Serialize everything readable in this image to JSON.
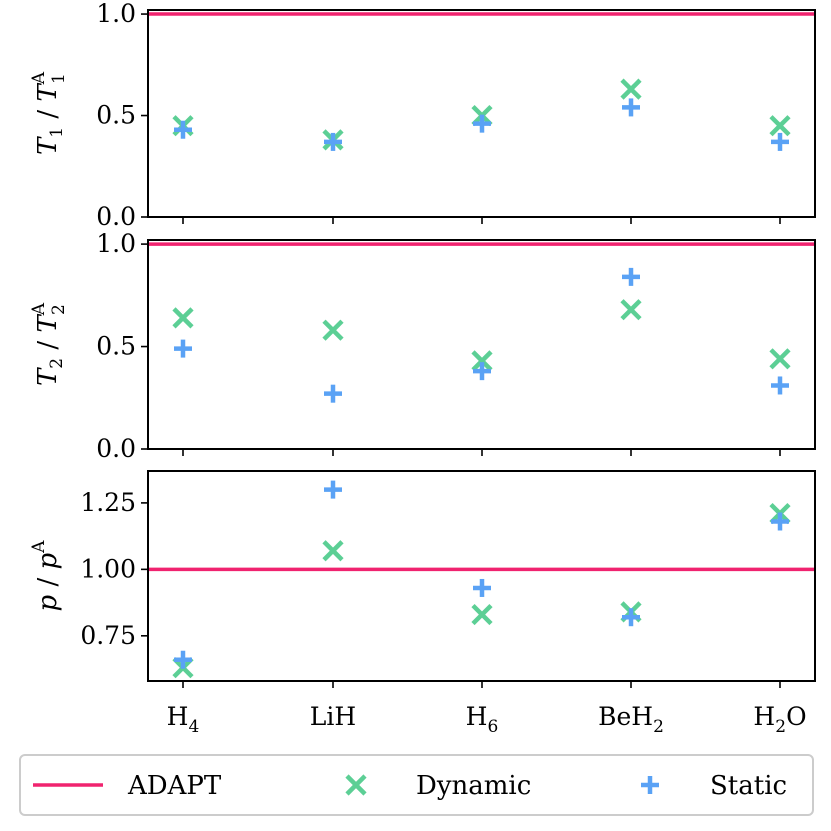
{
  "colors": {
    "adapt": "#f0236f",
    "dynamic": "#5ccf95",
    "static": "#5aa2f5"
  },
  "chart_data": [
    {
      "type": "scatter",
      "ylabel": "T₁ / T₁ᴬ",
      "ylabel_main": "T",
      "ylabel_sub": "1",
      "ylabel_sep": " / ",
      "ylabel_ref_sub": "1",
      "ylabel_sup": "A",
      "ylim": [
        0,
        1.02
      ],
      "yticks": [
        0.0,
        0.5,
        1.0
      ],
      "ytick_labels": [
        "0.0",
        "0.5",
        "1.0"
      ],
      "reference_line": 1.0,
      "categories": [
        "H₄",
        "LiH",
        "H₆",
        "BeH₂",
        "H₂O"
      ],
      "series": [
        {
          "name": "Dynamic",
          "marker": "x",
          "values": [
            0.45,
            0.38,
            0.5,
            0.63,
            0.45
          ]
        },
        {
          "name": "Static",
          "marker": "+",
          "values": [
            0.43,
            0.37,
            0.46,
            0.54,
            0.37
          ]
        }
      ]
    },
    {
      "type": "scatter",
      "ylabel": "T₂ / T₂ᴬ",
      "ylabel_main": "T",
      "ylabel_sub": "2",
      "ylabel_sep": " / ",
      "ylabel_ref_sub": "2",
      "ylabel_sup": "A",
      "ylim": [
        0,
        1.02
      ],
      "yticks": [
        0.0,
        0.5,
        1.0
      ],
      "ytick_labels": [
        "0.0",
        "0.5",
        "1.0"
      ],
      "reference_line": 1.0,
      "categories": [
        "H₄",
        "LiH",
        "H₆",
        "BeH₂",
        "H₂O"
      ],
      "series": [
        {
          "name": "Dynamic",
          "marker": "x",
          "values": [
            0.64,
            0.58,
            0.43,
            0.68,
            0.44
          ]
        },
        {
          "name": "Static",
          "marker": "+",
          "values": [
            0.49,
            0.27,
            0.38,
            0.84,
            0.31
          ]
        }
      ]
    },
    {
      "type": "scatter",
      "ylabel": "p / pᴬ",
      "ylabel_main": "p",
      "ylabel_sub": "",
      "ylabel_sep": " / ",
      "ylabel_ref_sub": "",
      "ylabel_sup": "A",
      "ylim": [
        0.58,
        1.37
      ],
      "yticks": [
        0.75,
        1.0,
        1.25
      ],
      "ytick_labels": [
        "0.75",
        "1.00",
        "1.25"
      ],
      "reference_line": 1.0,
      "categories": [
        "H₄",
        "LiH",
        "H₆",
        "BeH₂",
        "H₂O"
      ],
      "series": [
        {
          "name": "Dynamic",
          "marker": "x",
          "values": [
            0.63,
            1.07,
            0.83,
            0.84,
            1.21
          ]
        },
        {
          "name": "Static",
          "marker": "+",
          "values": [
            0.66,
            1.3,
            0.93,
            0.82,
            1.18
          ]
        }
      ]
    }
  ],
  "x_axis": {
    "labels": [
      {
        "base": "H",
        "sub": "4",
        "tail": ""
      },
      {
        "base": "LiH",
        "sub": "",
        "tail": ""
      },
      {
        "base": "H",
        "sub": "6",
        "tail": ""
      },
      {
        "base": "BeH",
        "sub": "2",
        "tail": ""
      },
      {
        "base": "H",
        "sub": "2",
        "tail": "O"
      }
    ]
  },
  "legend": {
    "placement": "bottom",
    "items": [
      {
        "label": "ADAPT",
        "kind": "line",
        "color_key": "adapt"
      },
      {
        "label": "Dynamic",
        "kind": "x",
        "color_key": "dynamic"
      },
      {
        "label": "Static",
        "kind": "plus",
        "color_key": "static"
      }
    ]
  }
}
